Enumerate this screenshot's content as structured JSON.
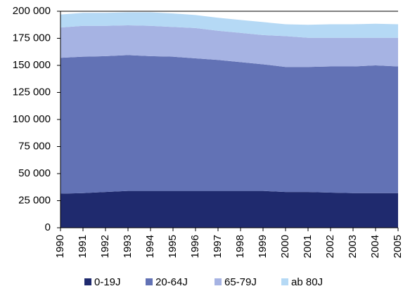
{
  "chart_data": {
    "type": "stacked-area",
    "categories": [
      "1990",
      "1991",
      "1992",
      "1993",
      "1994",
      "1995",
      "1996",
      "1997",
      "1998",
      "1999",
      "2000",
      "2001",
      "2002",
      "2003",
      "2004",
      "2005"
    ],
    "series": [
      {
        "name": "0-19J",
        "color": "#1f2a6e",
        "values": [
          31500,
          32000,
          33000,
          34000,
          34000,
          34000,
          34000,
          34000,
          34000,
          34000,
          33000,
          33000,
          32500,
          32000,
          32000,
          32000
        ]
      },
      {
        "name": "20-64J",
        "color": "#6272b5",
        "values": [
          125500,
          126000,
          125500,
          125500,
          124500,
          124000,
          122500,
          121000,
          119000,
          117000,
          115500,
          115500,
          116500,
          117000,
          118000,
          117000
        ]
      },
      {
        "name": "65-79J",
        "color": "#a6b3e3",
        "values": [
          28000,
          28500,
          28000,
          27500,
          28000,
          27500,
          28000,
          27000,
          27000,
          27000,
          28500,
          27000,
          26500,
          26500,
          25500,
          26500
        ]
      },
      {
        "name": "ab 80J",
        "color": "#b5d9f5",
        "values": [
          12000,
          12000,
          12000,
          12000,
          12500,
          12500,
          12000,
          12000,
          12000,
          12000,
          11000,
          12000,
          12500,
          12500,
          13000,
          12500
        ]
      }
    ],
    "ylim": [
      0,
      200000
    ],
    "yticks": [
      0,
      {
        "value": 25000,
        "label": "25 000"
      },
      {
        "value": 50000,
        "label": "50 000"
      },
      {
        "value": 75000,
        "label": "75 000"
      },
      {
        "value": 100000,
        "label": "100 000"
      },
      {
        "value": 125000,
        "label": "125 000"
      },
      {
        "value": 150000,
        "label": "150 000"
      },
      {
        "value": 175000,
        "label": "175 000"
      },
      {
        "value": 200000,
        "label": "200 000"
      }
    ],
    "legend": "bottom"
  }
}
